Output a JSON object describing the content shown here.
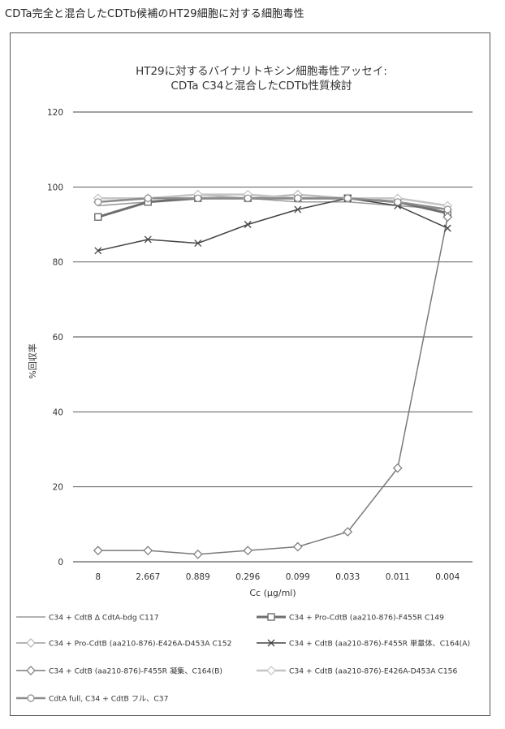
{
  "page": {
    "header": "CDTa完全と混合したCDTb候補のHT29細胞に対する細胞毒性"
  },
  "chart_data": {
    "type": "line",
    "title": [
      "HT29に対するバイナリトキシン細胞毒性アッセイ:",
      "CDTa C34と混合したCDTb性質検討"
    ],
    "xlabel": "Cc (μg/ml)",
    "ylabel": "%回収率",
    "categories": [
      "8",
      "2.667",
      "0.889",
      "0.296",
      "0.099",
      "0.033",
      "0.011",
      "0.004"
    ],
    "ylim": [
      0,
      120
    ],
    "yticks": [
      0,
      20,
      40,
      60,
      80,
      100,
      120
    ],
    "grid": true,
    "legend_position": "bottom",
    "series": [
      {
        "name": "C34 + CdtB Δ CdtA-bdg C117",
        "values": [
          95,
          96,
          97,
          97,
          96,
          96,
          95,
          94
        ],
        "color": "#9a9a9a",
        "marker": "none",
        "width": 1.5
      },
      {
        "name": "C34 + Pro-CdtB (aa210-876)-F455R C149",
        "values": [
          92,
          96,
          97,
          97,
          97,
          97,
          96,
          93
        ],
        "color": "#6e6e6e",
        "marker": "square",
        "width": 3
      },
      {
        "name": "C34 + Pro-CdtB (aa210-876)-E426A-D453A C152",
        "values": [
          96,
          97,
          98,
          97,
          98,
          97,
          96,
          94
        ],
        "color": "#b5b5b5",
        "marker": "diamond",
        "width": 2
      },
      {
        "name": "C34 + CdtB (aa210-876)-F455R 単量体、C164(A)",
        "values": [
          83,
          86,
          85,
          90,
          94,
          97,
          95,
          89
        ],
        "color": "#444444",
        "marker": "x",
        "width": 1.5
      },
      {
        "name": "C34 + CdtB (aa210-876)-F455R 凝集、C164(B)",
        "values": [
          3,
          3,
          2,
          3,
          4,
          8,
          25,
          92
        ],
        "color": "#7a7a7a",
        "marker": "diamond",
        "width": 1.5
      },
      {
        "name": "C34 + CdtB (aa210-876)-E426A-D453A C156",
        "values": [
          97,
          97,
          98,
          98,
          97,
          97,
          97,
          95
        ],
        "color": "#c4c4c4",
        "marker": "diamond",
        "width": 2.5
      },
      {
        "name": "CdtA full, C34 + CdtB フル、C37",
        "values": [
          96,
          97,
          97,
          97,
          97,
          97,
          96,
          94
        ],
        "color": "#8c8c8c",
        "marker": "circle",
        "width": 2.5
      }
    ]
  }
}
